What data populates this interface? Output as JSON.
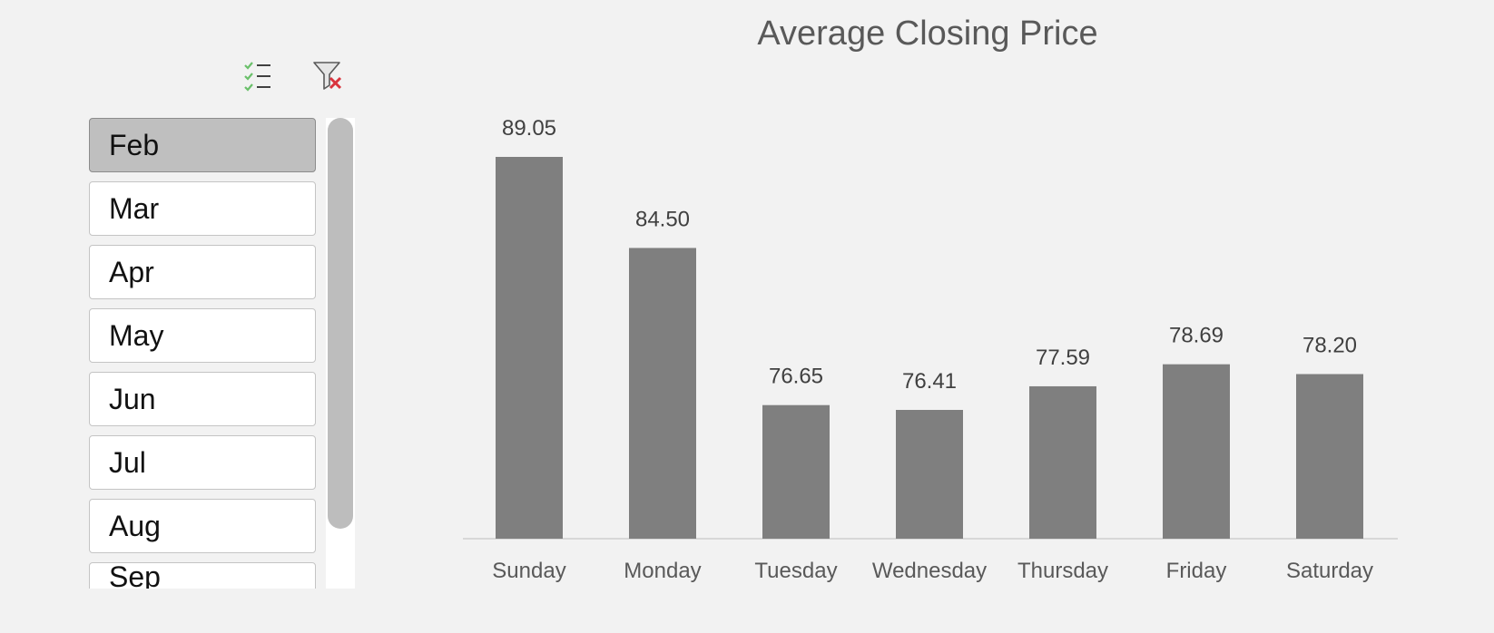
{
  "slicer": {
    "toolbar": {
      "multi_select_icon": "multi-select-icon",
      "clear_filter_icon": "clear-filter-icon"
    },
    "items": [
      {
        "label": "Feb",
        "selected": true
      },
      {
        "label": "Mar",
        "selected": false
      },
      {
        "label": "Apr",
        "selected": false
      },
      {
        "label": "May",
        "selected": false
      },
      {
        "label": "Jun",
        "selected": false
      },
      {
        "label": "Jul",
        "selected": false
      },
      {
        "label": "Aug",
        "selected": false
      },
      {
        "label": "Sep",
        "selected": false
      }
    ]
  },
  "colors": {
    "bar": "#7f7f7f",
    "selected_item": "#bfbfbf",
    "check_icon": "#6ac06a",
    "clear_x": "#d9343e"
  },
  "chart_data": {
    "type": "bar",
    "title": "Average Closing Price",
    "xlabel": "",
    "ylabel": "",
    "categories": [
      "Sunday",
      "Monday",
      "Tuesday",
      "Wednesday",
      "Thursday",
      "Friday",
      "Saturday"
    ],
    "values": [
      89.05,
      84.5,
      76.65,
      76.41,
      77.59,
      78.69,
      78.2
    ],
    "data_labels": [
      "89.05",
      "84.50",
      "76.65",
      "76.41",
      "77.59",
      "78.69",
      "78.20"
    ],
    "grid": false,
    "legend": "none"
  }
}
